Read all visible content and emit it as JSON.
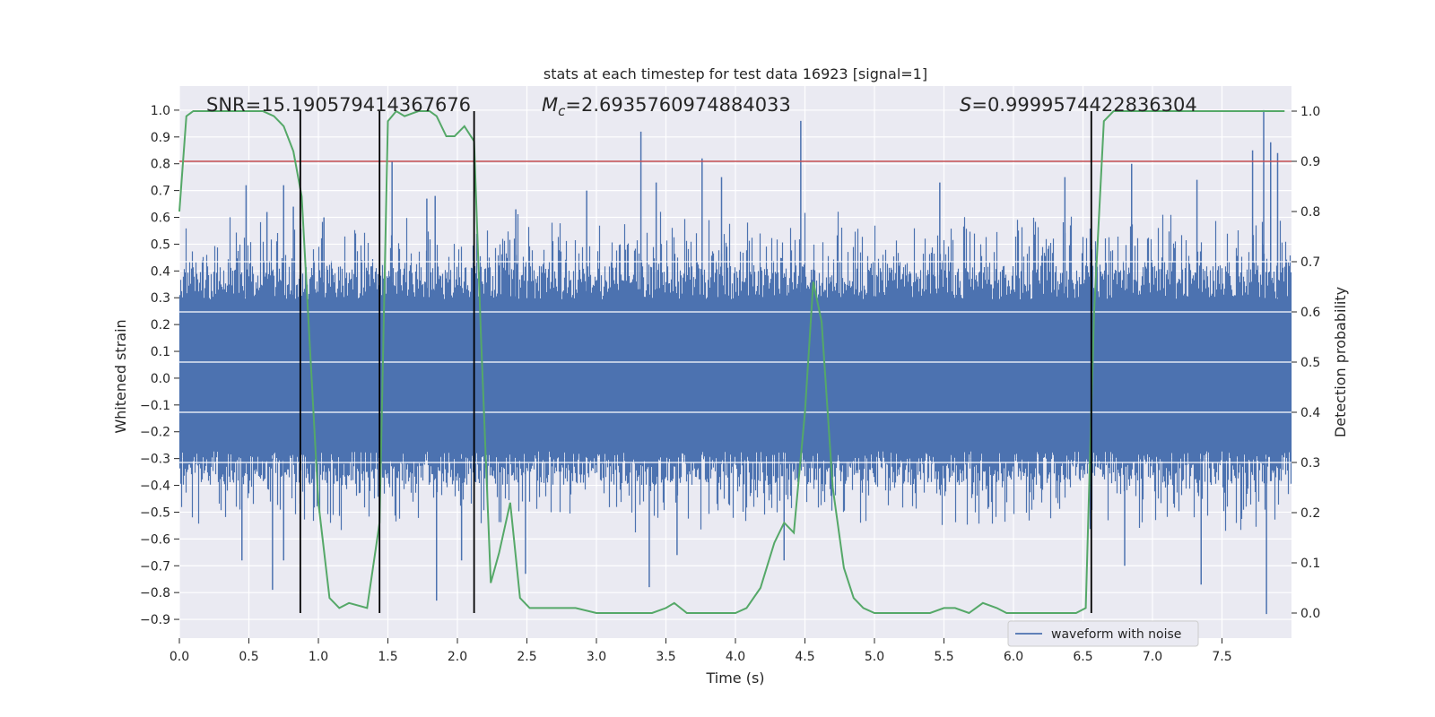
{
  "chart_data": {
    "type": "line",
    "title": "stats at each timestep for test data 16923 [signal=1]",
    "xlabel": "Time (s)",
    "ylabel": "Whitened strain",
    "y2label": "Detection probability",
    "xlim": [
      0.0,
      8.0
    ],
    "ylim": [
      -0.97,
      1.09
    ],
    "y2lim": [
      -0.05,
      1.05
    ],
    "xticks": [
      0.0,
      0.5,
      1.0,
      1.5,
      2.0,
      2.5,
      3.0,
      3.5,
      4.0,
      4.5,
      5.0,
      5.5,
      6.0,
      6.5,
      7.0,
      7.5
    ],
    "xtick_labels": [
      "0.0",
      "0.5",
      "1.0",
      "1.5",
      "2.0",
      "2.5",
      "3.0",
      "3.5",
      "4.0",
      "4.5",
      "5.0",
      "5.5",
      "6.0",
      "6.5",
      "7.0",
      "7.5"
    ],
    "yticks": [
      1.0,
      0.9,
      0.8,
      0.7,
      0.6,
      0.5,
      0.4,
      0.3,
      0.2,
      0.1,
      0.0,
      -0.1,
      -0.2,
      -0.3,
      -0.4,
      -0.5,
      -0.6,
      -0.7,
      -0.8,
      -0.9
    ],
    "ytick_labels": [
      "1.0",
      "0.9",
      "0.8",
      "0.7",
      "0.6",
      "0.5",
      "0.4",
      "0.3",
      "0.2",
      "0.1",
      "0.0",
      "−0.1",
      "−0.2",
      "−0.3",
      "−0.4",
      "−0.5",
      "−0.6",
      "−0.7",
      "−0.8",
      "−0.9"
    ],
    "y2ticks": [
      1.0,
      0.9,
      0.8,
      0.7,
      0.6,
      0.5,
      0.4,
      0.3,
      0.2,
      0.1,
      0.0
    ],
    "y2tick_labels": [
      "1.0",
      "0.9",
      "0.8",
      "0.7",
      "0.6",
      "0.5",
      "0.4",
      "0.3",
      "0.2",
      "0.1",
      "0.0"
    ],
    "annotations": {
      "snr": "SNR=15.190579414367676",
      "mc_symbol": "M",
      "mc_subscript": "c",
      "mc_value": "=2.6935760974884033",
      "s_symbol": "S",
      "s_value": "=0.9999574422836304"
    },
    "threshold": 0.9,
    "vertical_lines": [
      0.87,
      1.44,
      2.12,
      6.56
    ],
    "legend": [
      "waveform with noise"
    ],
    "waveform": {
      "name": "waveform with noise",
      "color": "#4c72b0",
      "envelope_low": 0.42,
      "envelope_high": 0.55,
      "duration": 8.0,
      "peaks": [
        {
          "t": 0.48,
          "v": 0.72
        },
        {
          "t": 0.63,
          "v": 0.62
        },
        {
          "t": 0.75,
          "v": 0.72
        },
        {
          "t": 0.82,
          "v": 0.64
        },
        {
          "t": 1.04,
          "v": 0.6
        },
        {
          "t": 1.53,
          "v": 0.81
        },
        {
          "t": 1.78,
          "v": 0.67
        },
        {
          "t": 1.84,
          "v": 0.68
        },
        {
          "t": 2.42,
          "v": 0.63
        },
        {
          "t": 2.93,
          "v": 0.7
        },
        {
          "t": 3.32,
          "v": 0.92
        },
        {
          "t": 3.43,
          "v": 0.73
        },
        {
          "t": 3.76,
          "v": 0.82
        },
        {
          "t": 3.9,
          "v": 0.75
        },
        {
          "t": 4.47,
          "v": 0.96
        },
        {
          "t": 5.47,
          "v": 0.73
        },
        {
          "t": 6.37,
          "v": 0.75
        },
        {
          "t": 6.85,
          "v": 0.8
        },
        {
          "t": 7.32,
          "v": 0.74
        },
        {
          "t": 7.72,
          "v": 0.85
        },
        {
          "t": 7.8,
          "v": 1.0
        },
        {
          "t": 7.85,
          "v": 0.88
        },
        {
          "t": 7.9,
          "v": 0.84
        }
      ],
      "troughs": [
        {
          "t": 0.45,
          "v": -0.68
        },
        {
          "t": 0.67,
          "v": -0.79
        },
        {
          "t": 0.75,
          "v": -0.68
        },
        {
          "t": 1.44,
          "v": -0.81
        },
        {
          "t": 1.85,
          "v": -0.83
        },
        {
          "t": 2.03,
          "v": -0.68
        },
        {
          "t": 2.49,
          "v": -0.73
        },
        {
          "t": 3.38,
          "v": -0.78
        },
        {
          "t": 3.58,
          "v": -0.66
        },
        {
          "t": 4.35,
          "v": -0.68
        },
        {
          "t": 7.35,
          "v": -0.77
        },
        {
          "t": 7.82,
          "v": -0.88
        },
        {
          "t": 6.8,
          "v": -0.7
        }
      ]
    },
    "detection_probability": {
      "color": "#55a868",
      "points": [
        [
          0.0,
          0.8
        ],
        [
          0.05,
          0.99
        ],
        [
          0.1,
          1.0
        ],
        [
          0.6,
          1.0
        ],
        [
          0.68,
          0.99
        ],
        [
          0.75,
          0.97
        ],
        [
          0.82,
          0.92
        ],
        [
          0.88,
          0.83
        ],
        [
          1.0,
          0.22
        ],
        [
          1.08,
          0.03
        ],
        [
          1.15,
          0.01
        ],
        [
          1.22,
          0.02
        ],
        [
          1.35,
          0.01
        ],
        [
          1.44,
          0.18
        ],
        [
          1.5,
          0.98
        ],
        [
          1.56,
          1.0
        ],
        [
          1.62,
          0.99
        ],
        [
          1.72,
          1.0
        ],
        [
          1.8,
          1.0
        ],
        [
          1.85,
          0.99
        ],
        [
          1.92,
          0.95
        ],
        [
          1.98,
          0.95
        ],
        [
          2.05,
          0.97
        ],
        [
          2.12,
          0.94
        ],
        [
          2.17,
          0.55
        ],
        [
          2.24,
          0.06
        ],
        [
          2.3,
          0.12
        ],
        [
          2.38,
          0.22
        ],
        [
          2.45,
          0.03
        ],
        [
          2.52,
          0.01
        ],
        [
          2.6,
          0.01
        ],
        [
          2.7,
          0.01
        ],
        [
          2.85,
          0.01
        ],
        [
          3.0,
          0.0
        ],
        [
          3.4,
          0.0
        ],
        [
          3.5,
          0.01
        ],
        [
          3.56,
          0.02
        ],
        [
          3.65,
          0.0
        ],
        [
          3.8,
          0.0
        ],
        [
          4.0,
          0.0
        ],
        [
          4.08,
          0.01
        ],
        [
          4.18,
          0.05
        ],
        [
          4.28,
          0.14
        ],
        [
          4.35,
          0.18
        ],
        [
          4.42,
          0.16
        ],
        [
          4.5,
          0.4
        ],
        [
          4.56,
          0.66
        ],
        [
          4.62,
          0.58
        ],
        [
          4.7,
          0.25
        ],
        [
          4.78,
          0.09
        ],
        [
          4.85,
          0.03
        ],
        [
          4.92,
          0.01
        ],
        [
          5.0,
          0.0
        ],
        [
          5.4,
          0.0
        ],
        [
          5.5,
          0.01
        ],
        [
          5.58,
          0.01
        ],
        [
          5.68,
          0.0
        ],
        [
          5.78,
          0.02
        ],
        [
          5.88,
          0.01
        ],
        [
          5.95,
          0.0
        ],
        [
          6.1,
          0.0
        ],
        [
          6.2,
          0.0
        ],
        [
          6.45,
          0.0
        ],
        [
          6.52,
          0.01
        ],
        [
          6.58,
          0.6
        ],
        [
          6.65,
          0.98
        ],
        [
          6.72,
          1.0
        ],
        [
          7.95,
          1.0
        ]
      ]
    }
  }
}
